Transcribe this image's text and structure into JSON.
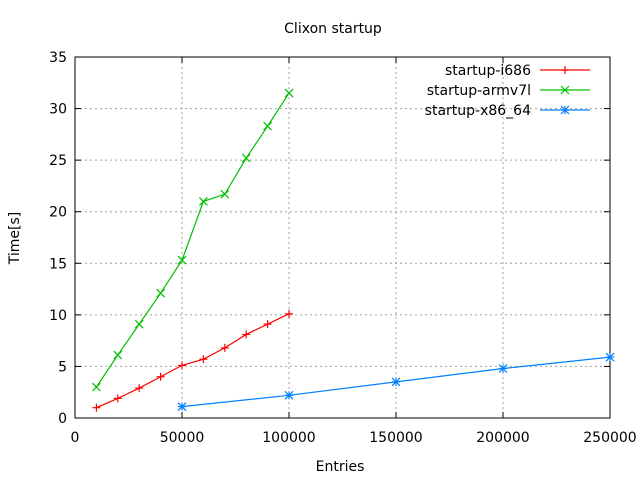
{
  "chart_data": {
    "type": "line",
    "title": "Clixon startup",
    "xlabel": "Entries",
    "ylabel": "Time[s]",
    "xlim": [
      0,
      250000
    ],
    "ylim": [
      0,
      35
    ],
    "xticks": [
      0,
      50000,
      100000,
      150000,
      200000,
      250000
    ],
    "yticks": [
      0,
      5,
      10,
      15,
      20,
      25,
      30,
      35
    ],
    "grid": true,
    "legend_position": "top-right",
    "series": [
      {
        "name": "startup-i686",
        "color": "#ff0000",
        "marker": "plus",
        "x": [
          10000,
          20000,
          30000,
          40000,
          50000,
          60000,
          70000,
          80000,
          90000,
          100000
        ],
        "y": [
          1.0,
          1.9,
          2.9,
          4.0,
          5.1,
          5.7,
          6.8,
          8.1,
          9.1,
          10.1
        ]
      },
      {
        "name": "startup-armv7l",
        "color": "#00c000",
        "marker": "cross",
        "x": [
          10000,
          20000,
          30000,
          40000,
          50000,
          60000,
          70000,
          80000,
          90000,
          100000
        ],
        "y": [
          3.0,
          6.1,
          9.1,
          12.1,
          15.3,
          21.0,
          21.7,
          25.2,
          28.3,
          31.5
        ]
      },
      {
        "name": "startup-x86_64",
        "color": "#0080ff",
        "marker": "star",
        "x": [
          50000,
          100000,
          150000,
          200000,
          250000
        ],
        "y": [
          1.1,
          2.2,
          3.5,
          4.8,
          5.9
        ]
      }
    ]
  }
}
